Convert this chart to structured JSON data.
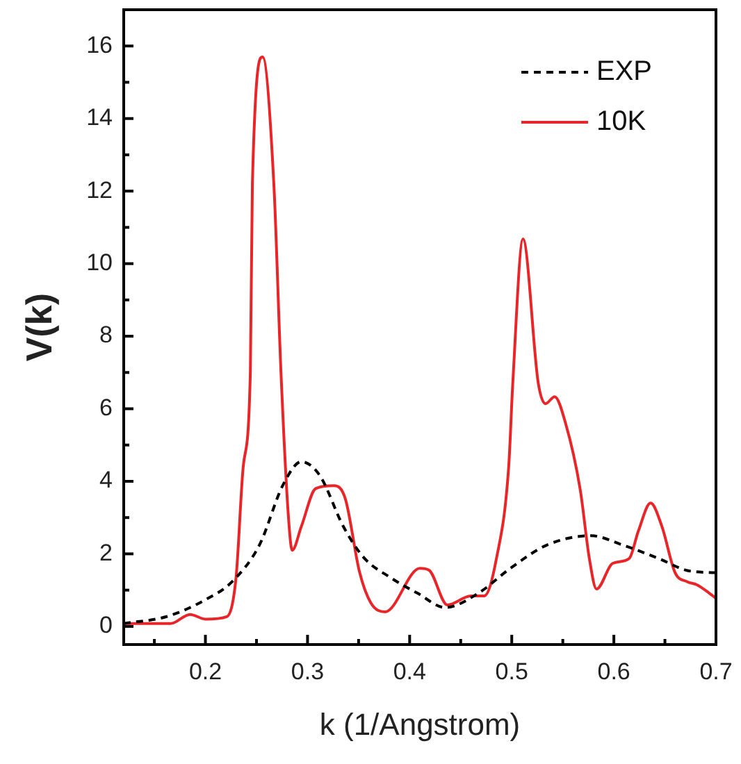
{
  "chart_data": {
    "type": "line",
    "xlabel": "k (1/Angstrom)",
    "ylabel": "V(k)",
    "xlim": [
      0.12,
      0.7
    ],
    "ylim": [
      -0.5,
      17
    ],
    "xticks": [
      {
        "value": 0.15,
        "label": null
      },
      0.2,
      {
        "value": 0.25,
        "label": null
      },
      0.3,
      {
        "value": 0.35,
        "label": null
      },
      0.4,
      {
        "value": 0.45,
        "label": null
      },
      0.5,
      {
        "value": 0.55,
        "label": null
      },
      0.6,
      {
        "value": 0.65,
        "label": null
      },
      0.7
    ],
    "yticks": [
      0,
      {
        "value": 1,
        "label": null
      },
      2,
      {
        "value": 3,
        "label": null
      },
      4,
      {
        "value": 5,
        "label": null
      },
      6,
      {
        "value": 7,
        "label": null
      },
      8,
      {
        "value": 9,
        "label": null
      },
      10,
      {
        "value": 11,
        "label": null
      },
      12,
      {
        "value": 13,
        "label": null
      },
      14,
      {
        "value": 15,
        "label": null
      },
      16
    ],
    "grid": false,
    "legend": "top right",
    "marker": "none",
    "series": [
      {
        "name": "EXP",
        "color": "#000000",
        "line_style": "dashed",
        "x": [
          0.12,
          0.162,
          0.199,
          0.226,
          0.253,
          0.276,
          0.294,
          0.312,
          0.335,
          0.355,
          0.381,
          0.408,
          0.435,
          0.467,
          0.499,
          0.535,
          0.578,
          0.608,
          0.644,
          0.672,
          0.7
        ],
        "values": [
          0.08,
          0.27,
          0.72,
          1.23,
          2.25,
          3.9,
          4.54,
          4.16,
          2.76,
          1.9,
          1.35,
          0.91,
          0.52,
          0.91,
          1.61,
          2.25,
          2.5,
          2.25,
          1.87,
          1.54,
          1.48
        ]
      },
      {
        "name": "10K",
        "color": "#e8262a",
        "line_style": "solid",
        "x": [
          0.12,
          0.166,
          0.185,
          0.2,
          0.221,
          0.23,
          0.237,
          0.244,
          0.246,
          0.256,
          0.267,
          0.274,
          0.281,
          0.285,
          0.294,
          0.308,
          0.326,
          0.337,
          0.351,
          0.362,
          0.376,
          0.41,
          0.419,
          0.437,
          0.46,
          0.473,
          0.485,
          0.497,
          0.501,
          0.511,
          0.526,
          0.533,
          0.542,
          0.553,
          0.567,
          0.576,
          0.583,
          0.599,
          0.615,
          0.624,
          0.636,
          0.647,
          0.66,
          0.672,
          0.681,
          0.7
        ],
        "values": [
          0.08,
          0.08,
          0.33,
          0.2,
          0.27,
          1.35,
          4.4,
          7,
          12.2,
          15.7,
          12.2,
          7,
          3.14,
          2.1,
          2.76,
          3.8,
          3.88,
          3.52,
          1.49,
          0.65,
          0.4,
          1.6,
          1.55,
          0.59,
          0.84,
          0.84,
          1.87,
          4.4,
          6.7,
          10.68,
          6.7,
          6.14,
          6.33,
          5.57,
          3.78,
          1.87,
          1.03,
          1.74,
          1.87,
          2.63,
          3.4,
          2.76,
          1.48,
          1.23,
          1.15,
          0.78
        ]
      }
    ]
  }
}
